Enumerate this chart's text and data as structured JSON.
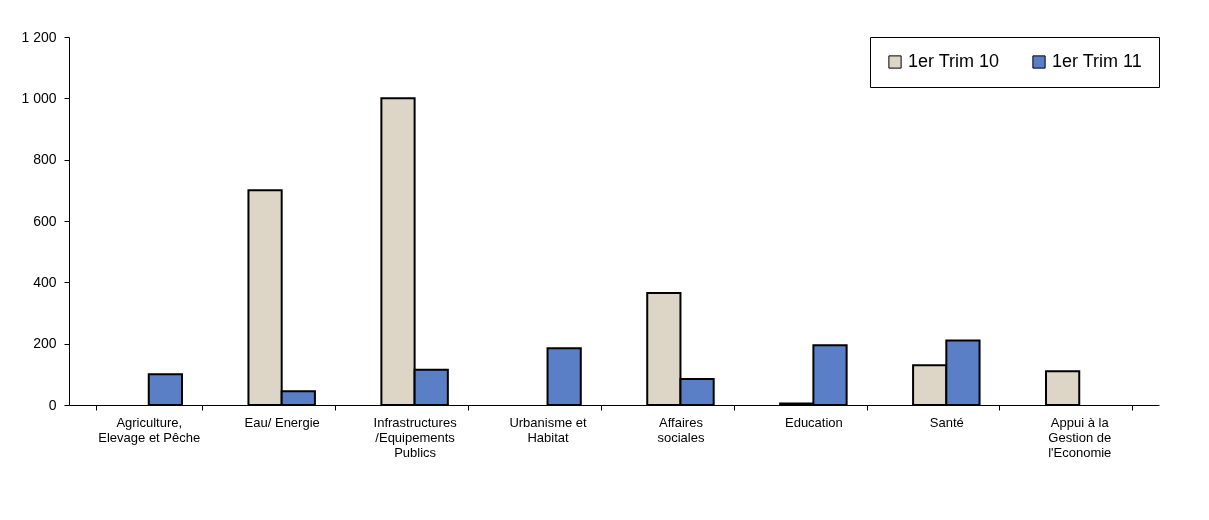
{
  "chart_data": {
    "type": "bar",
    "categories": [
      "Agriculture, Elevage et Pêche",
      "Eau/ Energie",
      "Infrastructures /Equipements Publics",
      "Urbanisme et Habitat",
      "Affaires sociales",
      "Education",
      "Santé",
      "Appui à la Gestion de l'Economie"
    ],
    "series": [
      {
        "name": "1er Trim 10",
        "color": "#ddd5c6",
        "values": [
          null,
          700,
          1000,
          null,
          365,
          5,
          130,
          110
        ]
      },
      {
        "name": "1er Trim 11",
        "color": "#5a7fc6",
        "values": [
          100,
          45,
          115,
          185,
          85,
          195,
          210,
          null
        ]
      }
    ],
    "ylim": [
      0,
      1200
    ],
    "yticks": [
      0,
      200,
      400,
      600,
      800,
      {
        "value": 1000,
        "label": "1 000"
      },
      {
        "value": 1200,
        "label": "1 200"
      }
    ],
    "grid": false,
    "legend": "top right"
  }
}
